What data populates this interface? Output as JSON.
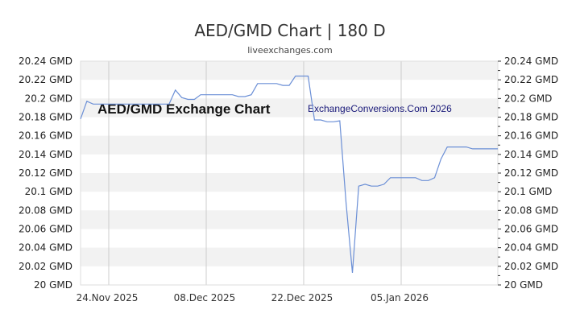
{
  "header": {
    "title": "AED/GMD Chart | 180 D",
    "subtitle": "liveexchanges.com"
  },
  "watermarks": {
    "left": "AED/GMD Exchange Chart",
    "right": "ExchangeConversions.Com 2026"
  },
  "colors": {
    "line": "#6b8fd6",
    "band": "#f2f2f2",
    "grid": "#cccccc",
    "axis_text": "#222222"
  },
  "chart_data": {
    "type": "line",
    "title": "AED/GMD Chart | 180 D",
    "subtitle": "liveexchanges.com",
    "xlabel": "",
    "ylabel": "",
    "ylim": [
      20.0,
      20.24
    ],
    "y_ticks": [
      "20.24 GMD",
      "20.22 GMD",
      "20.2 GMD",
      "20.18 GMD",
      "20.16 GMD",
      "20.14 GMD",
      "20.12 GMD",
      "20.1 GMD",
      "20.08 GMD",
      "20.06 GMD",
      "20.04 GMD",
      "20.02 GMD",
      "20 GMD"
    ],
    "x_ticks": [
      "24.Nov 2025",
      "08.Dec 2025",
      "22.Dec 2025",
      "05.Jan 2026"
    ],
    "grid": true,
    "legend": "none",
    "series": [
      {
        "name": "AED/GMD",
        "x": [
          0,
          1,
          2,
          3,
          4,
          5,
          6,
          7,
          8,
          9,
          10,
          11,
          12,
          13,
          14,
          15,
          16,
          17,
          18,
          19,
          20,
          21,
          22,
          23,
          24,
          25,
          26,
          27,
          28,
          29,
          30,
          31,
          32,
          33,
          34,
          35,
          36,
          37,
          38,
          39,
          40,
          41,
          42,
          43,
          44,
          45,
          46,
          47,
          48,
          49,
          50,
          51,
          52,
          53,
          54,
          55,
          56,
          57,
          58,
          59,
          60,
          61,
          62,
          63,
          64,
          65,
          66
        ],
        "values": [
          20.178,
          20.197,
          20.194,
          20.194,
          20.194,
          20.194,
          20.194,
          20.194,
          20.194,
          20.194,
          20.194,
          20.194,
          20.194,
          20.194,
          20.194,
          20.209,
          20.201,
          20.199,
          20.199,
          20.204,
          20.204,
          20.204,
          20.204,
          20.204,
          20.204,
          20.202,
          20.202,
          20.204,
          20.216,
          20.216,
          20.216,
          20.216,
          20.214,
          20.214,
          20.224,
          20.224,
          20.224,
          20.177,
          20.177,
          20.175,
          20.175,
          20.176,
          20.088,
          20.013,
          20.106,
          20.108,
          20.106,
          20.106,
          20.108,
          20.115,
          20.115,
          20.115,
          20.115,
          20.115,
          20.112,
          20.112,
          20.115,
          20.135,
          20.148,
          20.148,
          20.148,
          20.148,
          20.146,
          20.146,
          20.146,
          20.146,
          20.146
        ]
      }
    ]
  }
}
